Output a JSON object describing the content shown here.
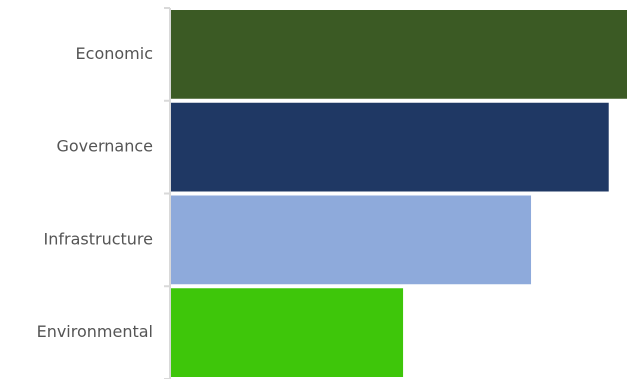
{
  "chart_data": {
    "type": "bar",
    "orientation": "horizontal",
    "categories": [
      "Economic",
      "Governance",
      "Infrastructure",
      "Environmental"
    ],
    "values": [
      100,
      96,
      79,
      51
    ],
    "colors": [
      "#3b5a24",
      "#1f3864",
      "#8eaadb",
      "#3ec60a"
    ],
    "title": "",
    "xlabel": "",
    "ylabel": "",
    "xlim": [
      0,
      100
    ],
    "grid": false,
    "legend": "none"
  }
}
